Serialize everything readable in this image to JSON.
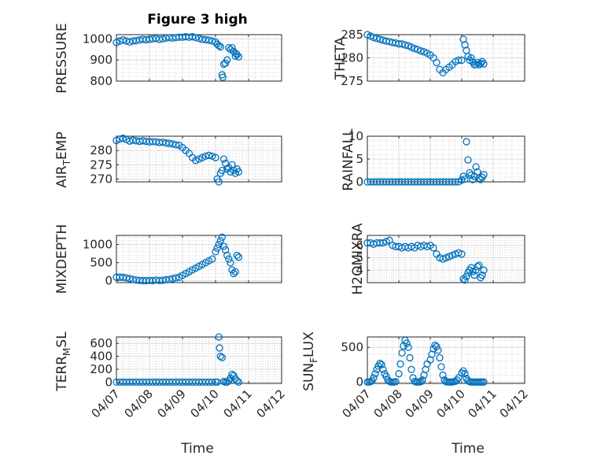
{
  "figure": {
    "title": "Figure 3 high",
    "xlabel": "Time",
    "marker_color": "#0072bd",
    "x_ticks": [
      "04/07",
      "04/08",
      "04/09",
      "04/10",
      "04/11",
      "04/12"
    ]
  },
  "chart_data": [
    {
      "type": "scatter",
      "title": "Figure 3 high",
      "ylabel": "PRESSURE",
      "xlim": [
        "04/07",
        "04/12"
      ],
      "ylim": [
        800,
        1020
      ],
      "y_ticks": [
        "800",
        "900",
        "1000"
      ],
      "x_tick_labels_shown": false,
      "grid": true,
      "series": [
        {
          "x": [
            0,
            0.1,
            0.2,
            0.3,
            0.4,
            0.5,
            0.6,
            0.7,
            0.8,
            0.9,
            1.0,
            1.1,
            1.2,
            1.3,
            1.4,
            1.5,
            1.6,
            1.7,
            1.8,
            1.9,
            2.0,
            2.1,
            2.2,
            2.3,
            2.4,
            2.5,
            2.6,
            2.7,
            2.8,
            2.9,
            3.0,
            3.05,
            3.1,
            3.15,
            3.2,
            3.22,
            3.25,
            3.3,
            3.35,
            3.4,
            3.45,
            3.5,
            3.55,
            3.6,
            3.62,
            3.65,
            3.7
          ],
          "y": [
            982,
            990,
            995,
            990,
            985,
            990,
            992,
            995,
            998,
            996,
            998,
            1000,
            1002,
            998,
            1000,
            1004,
            1006,
            1004,
            1006,
            1008,
            1008,
            1010,
            1008,
            1010,
            1006,
            1002,
            998,
            996,
            994,
            990,
            985,
            975,
            968,
            962,
            830,
            818,
            880,
            885,
            900,
            958,
            950,
            958,
            940,
            918,
            930,
            925,
            915
          ]
        }
      ]
    },
    {
      "type": "scatter",
      "ylabel": "THETA",
      "xlim": [
        "04/07",
        "04/12"
      ],
      "ylim": [
        275,
        285
      ],
      "y_ticks": [
        "275",
        "280",
        "285"
      ],
      "x_tick_labels_shown": false,
      "grid": true,
      "series": [
        {
          "x": [
            0,
            0.1,
            0.2,
            0.3,
            0.4,
            0.5,
            0.6,
            0.7,
            0.8,
            0.9,
            1.0,
            1.1,
            1.2,
            1.3,
            1.4,
            1.5,
            1.6,
            1.7,
            1.8,
            1.9,
            2.0,
            2.1,
            2.2,
            2.3,
            2.4,
            2.5,
            2.6,
            2.7,
            2.8,
            2.9,
            3.0,
            3.05,
            3.1,
            3.15,
            3.2,
            3.25,
            3.3,
            3.35,
            3.4,
            3.45,
            3.5,
            3.55,
            3.6,
            3.65,
            3.7
          ],
          "y": [
            285,
            284.7,
            284.4,
            284.2,
            284,
            283.8,
            283.6,
            283.5,
            283.3,
            283.2,
            283,
            283,
            282.8,
            282.6,
            282.3,
            282,
            281.8,
            281.5,
            281.3,
            281,
            280.6,
            280,
            279,
            277.5,
            276.8,
            277.5,
            278,
            278.5,
            279.2,
            279.5,
            279.5,
            284,
            282.8,
            281.6,
            280.3,
            279.5,
            280,
            279.1,
            278.5,
            278.6,
            279,
            278.5,
            278.8,
            279.2,
            278.7
          ]
        }
      ]
    },
    {
      "type": "scatter",
      "ylabel_main": "AIR",
      "ylabel_sub": "T",
      "ylabel_rest": "EMP",
      "xlim": [
        "04/07",
        "04/12"
      ],
      "ylim": [
        269,
        285
      ],
      "y_ticks": [
        "270",
        "275",
        "280"
      ],
      "x_tick_labels_shown": false,
      "grid": true,
      "series": [
        {
          "x": [
            0,
            0.1,
            0.2,
            0.3,
            0.4,
            0.5,
            0.6,
            0.7,
            0.8,
            0.9,
            1.0,
            1.1,
            1.2,
            1.3,
            1.4,
            1.5,
            1.6,
            1.7,
            1.8,
            1.9,
            2.0,
            2.1,
            2.2,
            2.3,
            2.4,
            2.5,
            2.6,
            2.7,
            2.8,
            2.9,
            3.0,
            3.05,
            3.1,
            3.15,
            3.2,
            3.25,
            3.3,
            3.35,
            3.4,
            3.45,
            3.5,
            3.55,
            3.6,
            3.65,
            3.7
          ],
          "y": [
            283.5,
            284,
            284.3,
            283.8,
            283.3,
            283.6,
            283.4,
            283.2,
            283.4,
            283.2,
            283,
            283.1,
            283,
            282.8,
            282.9,
            282.6,
            282.5,
            282.3,
            282,
            281.8,
            281,
            280,
            279,
            277.5,
            276.5,
            277,
            277.5,
            278,
            278.3,
            278,
            277.5,
            270,
            269,
            272,
            273,
            277,
            275.5,
            273.5,
            274,
            272.5,
            275,
            273,
            272,
            273.5,
            272.5
          ]
        }
      ]
    },
    {
      "type": "scatter",
      "ylabel": "RAINFALL",
      "xlim": [
        "04/07",
        "04/12"
      ],
      "ylim": [
        0,
        10
      ],
      "y_ticks": [
        "0",
        "5",
        "10"
      ],
      "x_tick_labels_shown": false,
      "grid": true,
      "series": [
        {
          "x": [
            0,
            0.1,
            0.2,
            0.3,
            0.4,
            0.5,
            0.6,
            0.7,
            0.8,
            0.9,
            1.0,
            1.1,
            1.2,
            1.3,
            1.4,
            1.5,
            1.6,
            1.7,
            1.8,
            1.9,
            2.0,
            2.1,
            2.2,
            2.3,
            2.4,
            2.5,
            2.6,
            2.7,
            2.8,
            2.9,
            3.0,
            3.05,
            3.1,
            3.15,
            3.2,
            3.25,
            3.3,
            3.35,
            3.4,
            3.45,
            3.5,
            3.55,
            3.6,
            3.65,
            3.7
          ],
          "y": [
            0,
            0,
            0,
            0,
            0,
            0,
            0,
            0,
            0,
            0,
            0,
            0,
            0,
            0,
            0,
            0,
            0,
            0,
            0,
            0,
            0,
            0,
            0,
            0,
            0,
            0,
            0,
            0,
            0,
            0,
            0.4,
            1.2,
            0.6,
            8.8,
            4.8,
            2.0,
            1.5,
            0.5,
            1.2,
            3.3,
            2.2,
            0.8,
            0.5,
            1.0,
            1.6
          ]
        }
      ]
    },
    {
      "type": "scatter",
      "ylabel": "MIXDEPTH",
      "xlim": [
        "04/07",
        "04/12"
      ],
      "ylim": [
        -50,
        1250
      ],
      "y_ticks": [
        "0",
        "500",
        "1000"
      ],
      "x_tick_labels_shown": false,
      "grid": true,
      "series": [
        {
          "x": [
            0,
            0.1,
            0.2,
            0.3,
            0.4,
            0.5,
            0.6,
            0.7,
            0.8,
            0.9,
            1.0,
            1.1,
            1.2,
            1.3,
            1.4,
            1.5,
            1.6,
            1.7,
            1.8,
            1.9,
            2.0,
            2.1,
            2.2,
            2.3,
            2.4,
            2.5,
            2.6,
            2.7,
            2.8,
            2.9,
            3.0,
            3.05,
            3.1,
            3.15,
            3.2,
            3.25,
            3.3,
            3.35,
            3.4,
            3.45,
            3.5,
            3.55,
            3.6,
            3.65,
            3.7
          ],
          "y": [
            100,
            100,
            95,
            80,
            60,
            40,
            20,
            10,
            5,
            5,
            10,
            5,
            20,
            10,
            15,
            30,
            40,
            60,
            80,
            100,
            150,
            200,
            250,
            300,
            350,
            400,
            450,
            500,
            550,
            600,
            800,
            900,
            1000,
            1100,
            1200,
            950,
            850,
            700,
            600,
            500,
            300,
            200,
            250,
            700,
            650
          ]
        }
      ]
    },
    {
      "type": "scatter",
      "ylabel": "H2OMIXRA",
      "xlim": [
        "04/07",
        "04/12"
      ],
      "ylim": [
        3,
        6.8
      ],
      "y_ticks": [
        "4",
        "5",
        "6"
      ],
      "x_tick_labels_shown": false,
      "grid": true,
      "series": [
        {
          "x": [
            0,
            0.1,
            0.2,
            0.3,
            0.4,
            0.5,
            0.6,
            0.7,
            0.8,
            0.9,
            1.0,
            1.1,
            1.2,
            1.3,
            1.4,
            1.5,
            1.6,
            1.7,
            1.8,
            1.9,
            2.0,
            2.1,
            2.2,
            2.3,
            2.4,
            2.5,
            2.6,
            2.7,
            2.8,
            2.9,
            3.0,
            3.05,
            3.1,
            3.15,
            3.2,
            3.25,
            3.3,
            3.35,
            3.4,
            3.45,
            3.5,
            3.55,
            3.6,
            3.65,
            3.7
          ],
          "y": [
            6.2,
            6.2,
            6.1,
            6.2,
            6.2,
            6.2,
            6.3,
            6.4,
            6.0,
            5.9,
            5.9,
            5.8,
            5.9,
            5.8,
            5.9,
            5.8,
            6.0,
            5.9,
            6.0,
            5.9,
            6.0,
            5.8,
            5.3,
            5.0,
            4.9,
            5.0,
            5.1,
            5.2,
            5.3,
            5.4,
            5.3,
            3.3,
            3.2,
            3.5,
            3.8,
            4.0,
            4.2,
            3.9,
            3.6,
            4.0,
            4.3,
            4.4,
            3.4,
            3.6,
            4.0
          ]
        }
      ]
    },
    {
      "type": "scatter",
      "ylabel_main": "TERR",
      "ylabel_sub": "M",
      "ylabel_rest": "SL",
      "xlim": [
        "04/07",
        "04/12"
      ],
      "ylim": [
        -20,
        700
      ],
      "y_ticks": [
        "0",
        "200",
        "400",
        "600"
      ],
      "x_tick_labels_shown": true,
      "grid": true,
      "series": [
        {
          "x": [
            0,
            0.1,
            0.2,
            0.3,
            0.4,
            0.5,
            0.6,
            0.7,
            0.8,
            0.9,
            1.0,
            1.1,
            1.2,
            1.3,
            1.4,
            1.5,
            1.6,
            1.7,
            1.8,
            1.9,
            2.0,
            2.1,
            2.2,
            2.3,
            2.4,
            2.5,
            2.6,
            2.7,
            2.8,
            2.9,
            3.0,
            3.05,
            3.1,
            3.12,
            3.15,
            3.2,
            3.25,
            3.3,
            3.35,
            3.4,
            3.45,
            3.5,
            3.55,
            3.6,
            3.65,
            3.7
          ],
          "y": [
            0,
            0,
            0,
            0,
            0,
            0,
            0,
            0,
            0,
            0,
            0,
            0,
            0,
            0,
            0,
            0,
            0,
            0,
            0,
            0,
            0,
            0,
            0,
            0,
            0,
            0,
            0,
            0,
            0,
            0,
            0,
            0,
            700,
            530,
            400,
            380,
            10,
            0,
            0,
            20,
            60,
            120,
            100,
            50,
            20,
            0
          ]
        }
      ]
    },
    {
      "type": "scatter",
      "ylabel_main": "SUN",
      "ylabel_sub": "F",
      "ylabel_rest": "LUX",
      "xlim": [
        "04/07",
        "04/12"
      ],
      "ylim": [
        -20,
        650
      ],
      "y_ticks": [
        "0",
        "500"
      ],
      "x_tick_labels_shown": true,
      "grid": true,
      "series": [
        {
          "x": [
            0,
            0.05,
            0.1,
            0.15,
            0.2,
            0.25,
            0.3,
            0.35,
            0.4,
            0.45,
            0.5,
            0.55,
            0.6,
            0.65,
            0.7,
            0.75,
            0.8,
            0.85,
            0.9,
            1.0,
            1.05,
            1.1,
            1.15,
            1.2,
            1.25,
            1.3,
            1.35,
            1.4,
            1.45,
            1.5,
            1.55,
            1.6,
            1.65,
            1.7,
            1.75,
            1.8,
            1.85,
            1.9,
            2.0,
            2.05,
            2.1,
            2.15,
            2.2,
            2.25,
            2.3,
            2.35,
            2.4,
            2.45,
            2.5,
            2.55,
            2.6,
            2.65,
            2.7,
            2.75,
            2.8,
            2.85,
            2.9,
            3.0,
            3.05,
            3.1,
            3.15,
            3.2,
            3.25,
            3.3,
            3.35,
            3.4,
            3.45,
            3.5,
            3.55,
            3.6,
            3.65,
            3.7
          ],
          "y": [
            0,
            0,
            5,
            20,
            60,
            120,
            180,
            230,
            270,
            250,
            180,
            120,
            80,
            30,
            10,
            0,
            0,
            0,
            5,
            120,
            260,
            420,
            520,
            600,
            560,
            500,
            350,
            180,
            60,
            10,
            0,
            0,
            0,
            5,
            30,
            100,
            180,
            260,
            320,
            400,
            480,
            530,
            510,
            460,
            350,
            220,
            100,
            30,
            5,
            0,
            0,
            0,
            0,
            5,
            10,
            30,
            60,
            130,
            160,
            120,
            50,
            20,
            5,
            0,
            0,
            0,
            0,
            0,
            0,
            0,
            0,
            0
          ]
        }
      ]
    }
  ]
}
